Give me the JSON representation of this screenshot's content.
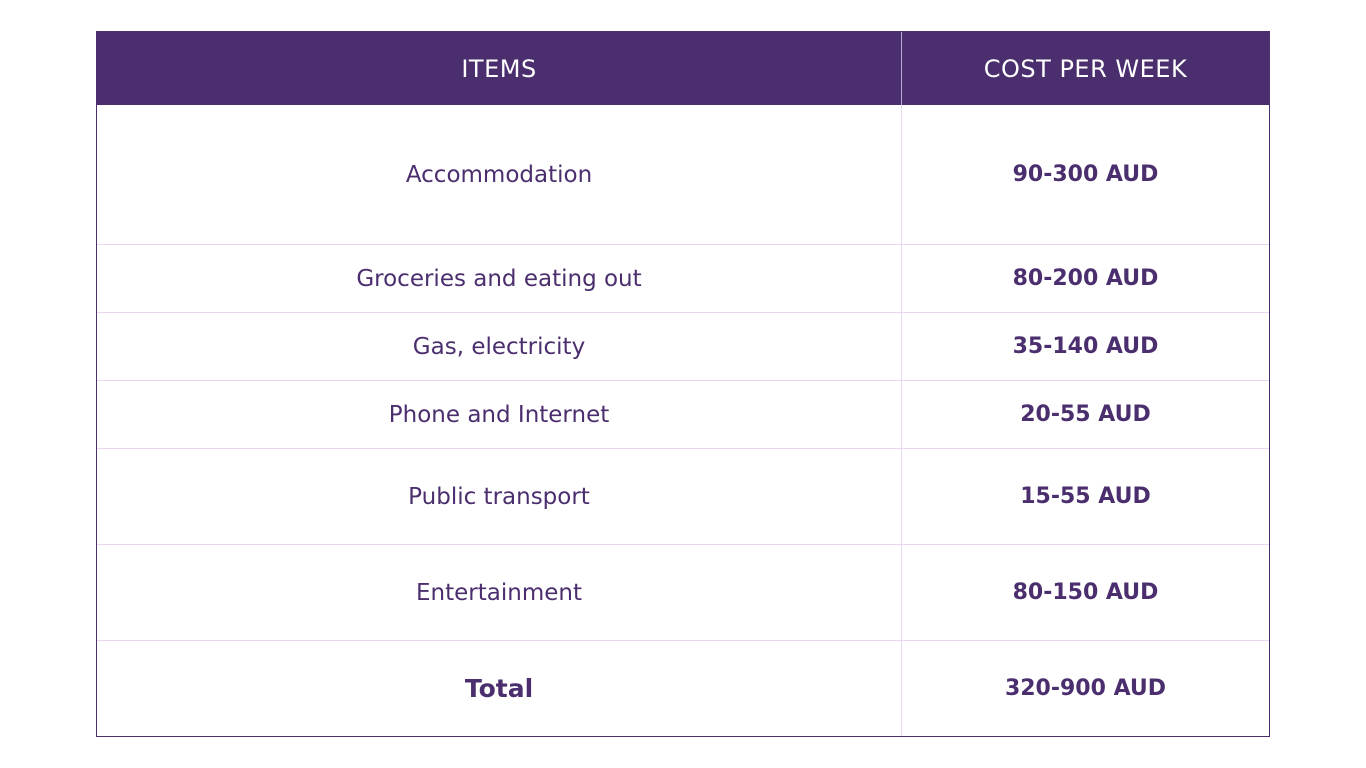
{
  "table": {
    "headers": {
      "items": "ITEMS",
      "cost": "COST PER WEEK"
    },
    "rows": [
      {
        "item": "Accommodation",
        "cost": "90-300 AUD"
      },
      {
        "item": "Groceries and eating out",
        "cost": "80-200 AUD"
      },
      {
        "item": "Gas, electricity",
        "cost": "35-140 AUD"
      },
      {
        "item": "Phone and Internet",
        "cost": "20-55 AUD"
      },
      {
        "item": "Public transport",
        "cost": "15-55 AUD"
      },
      {
        "item": "Entertainment",
        "cost": "80-150 AUD"
      }
    ],
    "total": {
      "label": "Total",
      "cost": "320-900 AUD"
    }
  },
  "colors": {
    "header_bg": "#4b2e6e",
    "text": "#4b2e6e",
    "row_divider": "#ead6f0"
  }
}
